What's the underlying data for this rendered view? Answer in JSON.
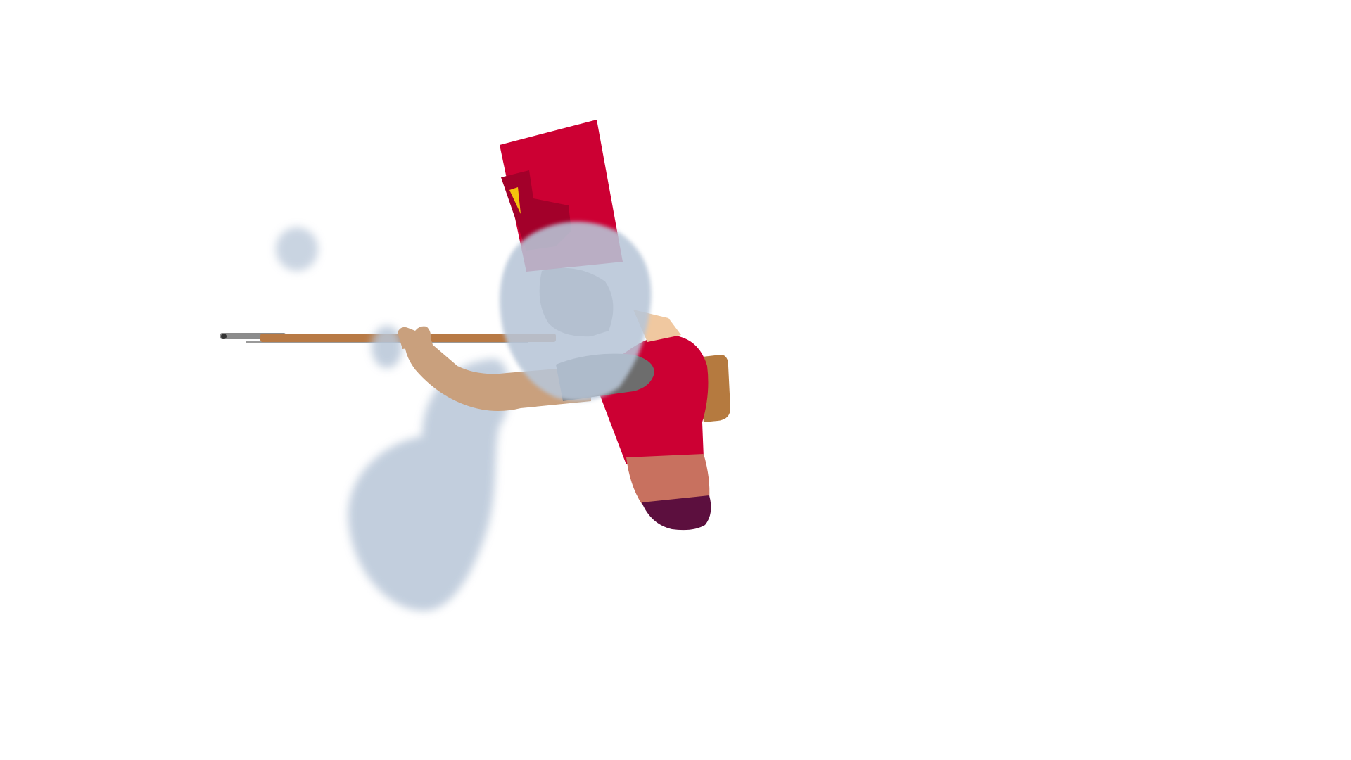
{
  "scene": {
    "description_visible_text": "",
    "colors": {
      "background": "#ffffff",
      "hat_red": "#cc0033",
      "hat_dark_red": "#a3002a",
      "plume_yellow": "#f4c20d",
      "coat_red": "#cc0033",
      "skin": "#c9a07d",
      "trousers": "#c8715f",
      "boot": "#5c0f3e",
      "rifle_wood": "#b87a45",
      "rifle_metal": "#8c8c8c",
      "stock_wood": "#b57a3f",
      "smoke": "#b8c6d8",
      "sleeve_grey": "#6d6d6d"
    }
  }
}
